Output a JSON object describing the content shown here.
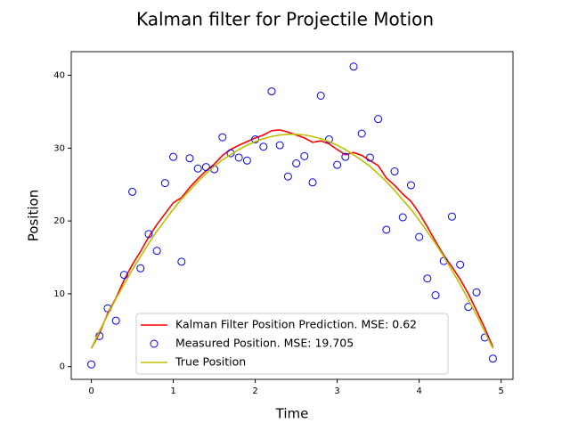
{
  "chart_data": {
    "type": "line",
    "title": "Kalman filter for Projectile Motion",
    "x_label": "Time",
    "y_label": "Position",
    "x": [
      0,
      0.1,
      0.2,
      0.3,
      0.4,
      0.5,
      0.6,
      0.7,
      0.8,
      0.9,
      1.0,
      1.1,
      1.2,
      1.3,
      1.4,
      1.5,
      1.6,
      1.7,
      1.8,
      1.9,
      2.0,
      2.1,
      2.2,
      2.3,
      2.4,
      2.5,
      2.6,
      2.7,
      2.8,
      2.9,
      3.0,
      3.1,
      3.2,
      3.3,
      3.4,
      3.5,
      3.6,
      3.7,
      3.8,
      3.9,
      4.0,
      4.1,
      4.2,
      4.3,
      4.4,
      4.5,
      4.6,
      4.7,
      4.8,
      4.9
    ],
    "series": [
      {
        "name": "Kalman Filter Position Prediction. MSE: 0.62",
        "color": "#ff0000",
        "style": "line",
        "values": [
          2.5,
          4.6,
          7.3,
          9.4,
          11.9,
          14.0,
          15.8,
          17.8,
          19.5,
          21.0,
          22.5,
          23.2,
          24.6,
          25.8,
          26.9,
          27.8,
          29.0,
          29.8,
          30.4,
          30.9,
          31.4,
          31.8,
          32.4,
          32.5,
          32.2,
          31.8,
          31.4,
          30.8,
          31.0,
          30.6,
          29.8,
          29.1,
          29.4,
          29.0,
          28.3,
          27.6,
          25.9,
          24.9,
          23.7,
          22.7,
          21.1,
          19.2,
          17.2,
          15.3,
          13.7,
          12.0,
          10.0,
          7.7,
          5.3,
          2.7
        ]
      },
      {
        "name": "Measured Position. MSE: 19.705",
        "color": "#0000ff",
        "style": "marker",
        "values": [
          0.3,
          4.2,
          8.0,
          6.3,
          12.6,
          24.0,
          13.5,
          18.2,
          15.9,
          25.2,
          28.8,
          14.4,
          28.6,
          27.2,
          27.4,
          27.1,
          31.5,
          29.3,
          28.7,
          28.3,
          31.2,
          30.2,
          37.8,
          30.4,
          26.1,
          27.9,
          28.9,
          25.3,
          37.2,
          31.2,
          27.7,
          28.8,
          41.2,
          32.0,
          28.7,
          34.0,
          18.8,
          26.8,
          20.5,
          24.9,
          17.8,
          12.1,
          9.8,
          14.5,
          20.6,
          14.0,
          8.2,
          10.2,
          4.0,
          1.1
        ]
      },
      {
        "name": "True Position",
        "color": "#bfbf00",
        "style": "line",
        "values": [
          2.5,
          4.9,
          7.1,
          9.3,
          11.3,
          13.3,
          15.1,
          16.9,
          18.6,
          20.1,
          21.6,
          23.0,
          24.2,
          25.4,
          26.5,
          27.5,
          28.4,
          29.1,
          29.8,
          30.4,
          30.9,
          31.3,
          31.6,
          31.8,
          31.9,
          31.9,
          31.8,
          31.6,
          31.3,
          30.9,
          30.4,
          29.8,
          29.1,
          28.3,
          27.5,
          26.5,
          25.4,
          24.2,
          22.9,
          21.6,
          20.1,
          18.5,
          16.9,
          15.1,
          13.2,
          11.3,
          9.2,
          7.1,
          4.8,
          2.5
        ]
      }
    ],
    "xlim": [
      -0.245,
      5.145
    ],
    "xticks": [
      0,
      1,
      2,
      3,
      4,
      5
    ],
    "ylim": [
      -1.75,
      43.25
    ],
    "yticks": [
      0,
      10,
      20,
      30,
      40
    ],
    "legend": "lower center"
  }
}
